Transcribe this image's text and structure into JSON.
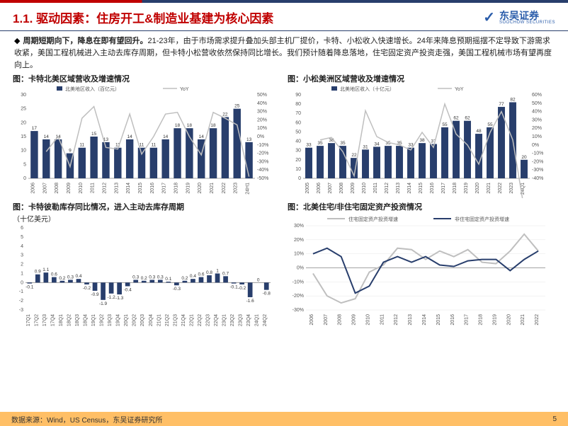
{
  "header": {
    "title": "1.1. 驱动因素：住房开工&制造业基建为核心因素",
    "logo_cn": "东吴证券",
    "logo_en": "SOOCHOW SECURITIES"
  },
  "paragraph": {
    "lead": "周期短期向下，降息在即有望回升。",
    "rest": "21-23年，由于市场需求提升叠加头部主机厂提价，卡特、小松收入快速增长。24年来降息预期摇摆不定导致下游需求收紧，美国工程机械进入主动去库存周期，但卡特小松营收依然保持同比增长。我们预计随着降息落地，住宅固定资产投资走强，美国工程机械市场有望再度向上。"
  },
  "chart1": {
    "title": "图：卡特北美区域营收及增速情况",
    "type": "bar+line",
    "legend_bar": "北美地区收入（百亿元）",
    "legend_line": "YoY",
    "categories": [
      "2006",
      "2007",
      "2008",
      "2009",
      "2010",
      "2011",
      "2012",
      "2013",
      "2014",
      "2015",
      "2016",
      "2017",
      "2018",
      "2019",
      "2020",
      "2021",
      "2022",
      "2023",
      "24H1"
    ],
    "bars": [
      17,
      14,
      14,
      9,
      11,
      15,
      13,
      11,
      14,
      11,
      11,
      14,
      18,
      18,
      14,
      18,
      22,
      25,
      13
    ],
    "line_pct": [
      null,
      -18,
      0,
      -36,
      22,
      36,
      -13,
      -15,
      27,
      -21,
      0,
      27,
      29,
      0,
      -22,
      29,
      22,
      14,
      -48
    ],
    "y_left_max": 30,
    "y_left_step": 5,
    "y_right_max": 50,
    "y_right_min": -50,
    "y_right_step": 10,
    "bar_color": "#283e6c",
    "line_color": "#bfbfbf",
    "bg": "#ffffff",
    "grid": "#e6e6e6"
  },
  "chart2": {
    "title": "图：小松美洲区域营收及增速情况",
    "type": "bar+line",
    "legend_bar": "北美地区收入（十亿元）",
    "legend_line": "YoY",
    "categories": [
      "2005",
      "2006",
      "2007",
      "2008",
      "2009",
      "2010",
      "2011",
      "2012",
      "2013",
      "2014",
      "2015",
      "2016",
      "2017",
      "2018",
      "2019",
      "2020",
      "2021",
      "2022",
      "2023",
      "24Q1"
    ],
    "bars": [
      33,
      35,
      38,
      35,
      22,
      31,
      34,
      35,
      35,
      33,
      38,
      37,
      55,
      62,
      62,
      48,
      55,
      77,
      82,
      20
    ],
    "line_pct": [
      null,
      6,
      9,
      -8,
      -37,
      41,
      10,
      3,
      0,
      -6,
      15,
      -3,
      49,
      13,
      0,
      -23,
      15,
      40,
      6,
      -76
    ],
    "y_left_max": 90,
    "y_left_step": 10,
    "y_right_max": 60,
    "y_right_min": -40,
    "y_right_step": 10,
    "bar_color": "#283e6c",
    "line_color": "#bfbfbf",
    "bg": "#ffffff",
    "grid": "#e6e6e6"
  },
  "chart3": {
    "title": "图：卡特彼勒库存同比情况，进入主动去库存周期",
    "subtitle": "（十亿美元）",
    "type": "bar",
    "categories": [
      "17Q1",
      "17Q2",
      "17Q3",
      "17Q4",
      "18Q1",
      "18Q2",
      "18Q3",
      "18Q4",
      "19Q1",
      "19Q2",
      "19Q3",
      "19Q4",
      "20Q1",
      "20Q2",
      "20Q3",
      "20Q4",
      "21Q1",
      "21Q2",
      "21Q3",
      "21Q4",
      "22Q1",
      "22Q2",
      "22Q3",
      "22Q4",
      "23Q1",
      "23Q2",
      "23Q3",
      "23Q4",
      "24Q1",
      "24Q2"
    ],
    "values": [
      -0.1,
      0.9,
      1.1,
      0.6,
      0.2,
      0.3,
      0.4,
      -0.2,
      -0.9,
      -1.9,
      -1.2,
      -1.3,
      -0.4,
      0.3,
      0.2,
      0.3,
      0.3,
      0.1,
      -0.3,
      0.2,
      0.4,
      0.6,
      0.8,
      1.0,
      0.7,
      -0.1,
      -0.2,
      -1.6,
      0,
      -0.8
    ],
    "y_min": -3,
    "y_max": 6,
    "y_step": 1,
    "bar_color": "#283e6c",
    "bg": "#ffffff",
    "grid": "#e6e6e6"
  },
  "chart4": {
    "title": "图：北美住宅/非住宅固定资产投资情况",
    "type": "line",
    "legend_a": "住宅固定资产投资增速",
    "legend_b": "非住宅固定资产投资增速",
    "categories": [
      "2006",
      "2007",
      "2008",
      "2009",
      "2010",
      "2011",
      "2012",
      "2013",
      "2014",
      "2015",
      "2016",
      "2017",
      "2018",
      "2019",
      "2020",
      "2021",
      "2022"
    ],
    "series_a": [
      -4,
      -20,
      -25,
      -22,
      -3,
      2,
      14,
      13,
      6,
      12,
      8,
      13,
      4,
      3,
      12,
      24,
      12
    ],
    "series_b": [
      10,
      14,
      8,
      -18,
      -13,
      4,
      8,
      4,
      8,
      2,
      1,
      5,
      6,
      6,
      -2,
      6,
      12
    ],
    "y_min": -30,
    "y_max": 30,
    "y_step": 10,
    "color_a": "#bfbfbf",
    "color_b": "#283e6c",
    "bg": "#ffffff",
    "grid": "#e6e6e6"
  },
  "footer": {
    "source": "数据来源：Wind，US Census，东吴证券研究所",
    "page": "5"
  }
}
